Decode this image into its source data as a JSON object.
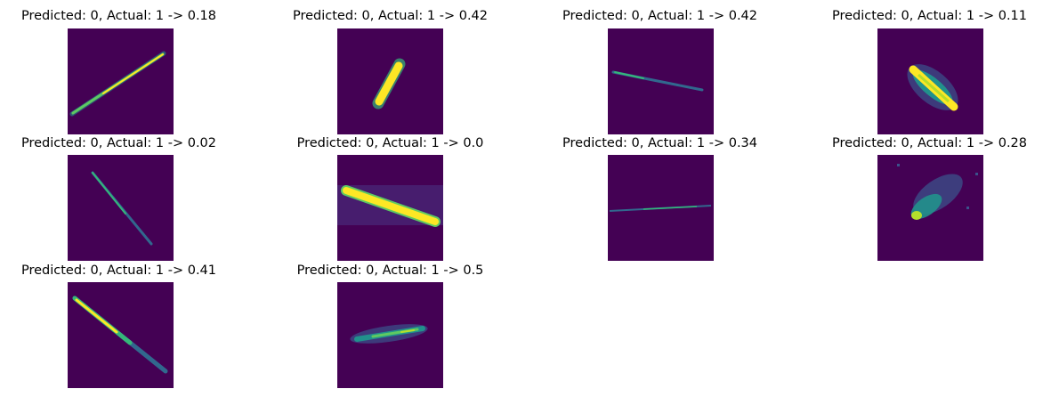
{
  "figure": {
    "panels": [
      {
        "title": "Predicted: 0, Actual: 1 -> 0.18",
        "image": "thin diagonal streak, bottom-left to top-right"
      },
      {
        "title": "Predicted: 0, Actual: 1 -> 0.42",
        "image": "short thick bright streak, steep diagonal"
      },
      {
        "title": "Predicted: 0, Actual: 1 -> 0.42",
        "image": "faint thin near-horizontal streak"
      },
      {
        "title": "Predicted: 0, Actual: 1 -> 0.11",
        "image": "bright blob streak with halo"
      },
      {
        "title": "Predicted: 0, Actual: 1 -> 0.02",
        "image": "faint thin steep diagonal streak"
      },
      {
        "title": "Predicted: 0, Actual: 1 -> 0.0",
        "image": "thick bright diagonal bar in a band"
      },
      {
        "title": "Predicted: 0, Actual: 1 -> 0.34",
        "image": "very thin horizontal line"
      },
      {
        "title": "Predicted: 0, Actual: 1 -> 0.28",
        "image": "diffuse cloudy blob"
      },
      {
        "title": "Predicted: 0, Actual: 1 -> 0.41",
        "image": "long diagonal streak top-left to bottom-right"
      },
      {
        "title": "Predicted: 0, Actual: 1 -> 0.5",
        "image": "short fuzzy near-horizontal streak"
      }
    ]
  },
  "colors": {
    "background": "#440154",
    "low": "#31688e",
    "mid": "#35b779",
    "high": "#fde725"
  }
}
